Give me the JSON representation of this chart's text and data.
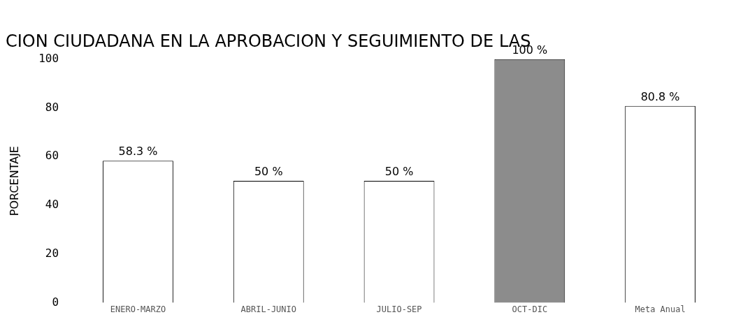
{
  "chart_data": {
    "type": "bar",
    "title": "CION CIUDADANA EN LA APROBACION Y SEGUIMIENTO DE LAS",
    "ylabel": "PORCENTAJE",
    "categories": [
      "ENERO-MARZO",
      "ABRIL-JUNIO",
      "JULIO-SEP",
      "OCT-DIC",
      "Meta Anual"
    ],
    "values": [
      58.3,
      50,
      50,
      100,
      80.8
    ],
    "value_labels": [
      "58.3 %",
      "50 %",
      "50 %",
      "100 %",
      "80.8 %"
    ],
    "colors": [
      "#ffffff",
      "#ffffff",
      "#ffffff",
      "#8c8c8c",
      "#ffffff"
    ],
    "ylim": [
      0,
      100
    ],
    "yticks": [
      0,
      20,
      40,
      60,
      80,
      100
    ],
    "grid": false,
    "legend": false
  }
}
